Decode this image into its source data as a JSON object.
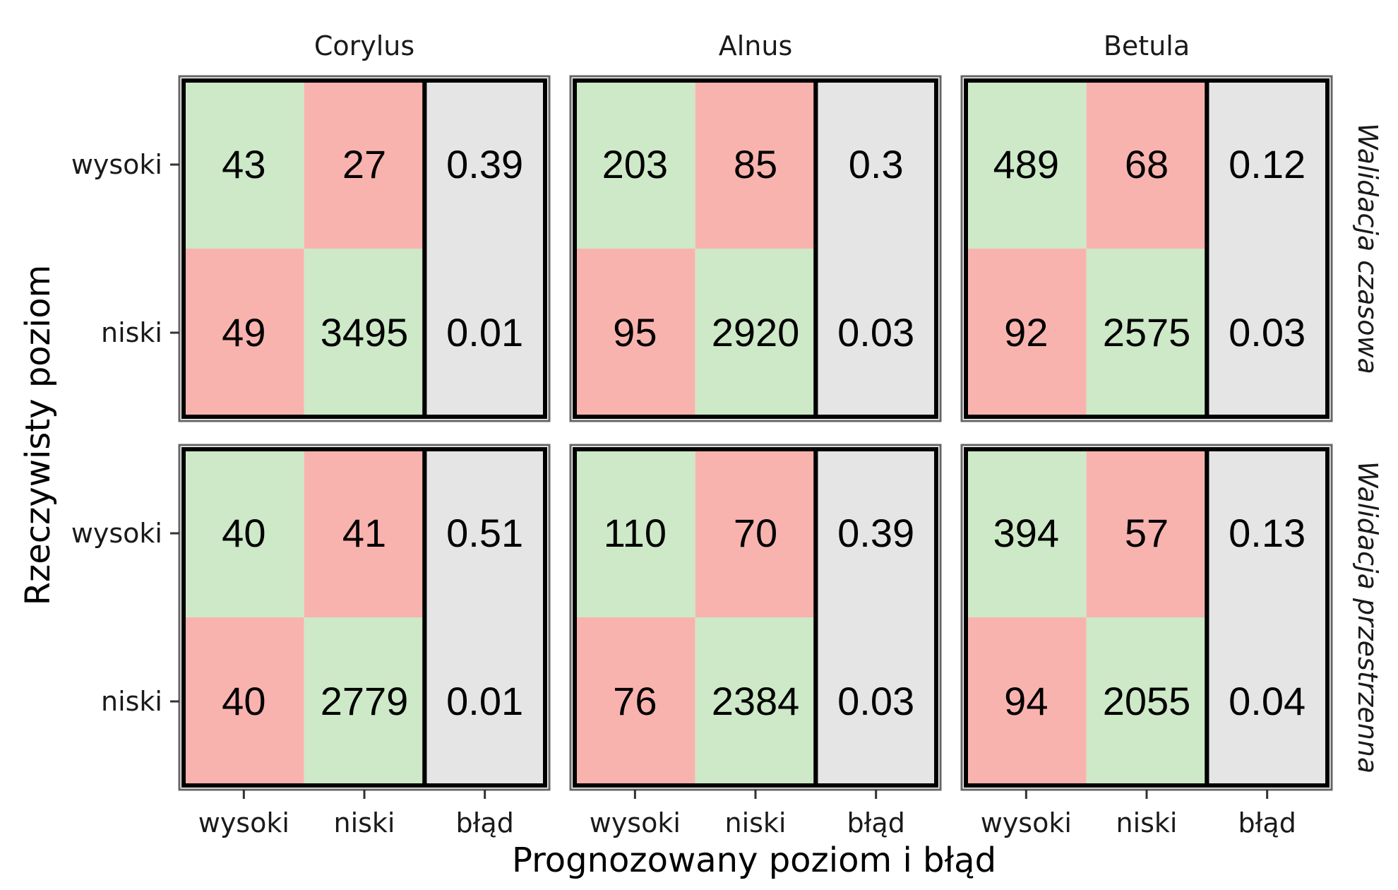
{
  "chart_data": {
    "type": "heatmap",
    "xlabel": "Prognozowany poziom i błąd",
    "ylabel": "Rzeczywisty poziom",
    "columns": [
      "wysoki",
      "niski",
      "błąd"
    ],
    "rows": [
      "wysoki",
      "niski"
    ],
    "facet_columns": [
      "Corylus",
      "Alnus",
      "Betula"
    ],
    "facet_rows": [
      "Walidacja czasowa",
      "Walidacja przestrzenna"
    ],
    "colors": {
      "correct": "#cde9c7",
      "wrong": "#f9b3ae",
      "error": "#e5e5e5",
      "border": "#000000",
      "panel_frame": "#666666"
    },
    "panels": [
      {
        "facet_row": "Walidacja czasowa",
        "facet_col": "Corylus",
        "values": [
          [
            "43",
            "27",
            "0.39"
          ],
          [
            "49",
            "3495",
            "0.01"
          ]
        ]
      },
      {
        "facet_row": "Walidacja czasowa",
        "facet_col": "Alnus",
        "values": [
          [
            "203",
            "85",
            "0.3"
          ],
          [
            "95",
            "2920",
            "0.03"
          ]
        ]
      },
      {
        "facet_row": "Walidacja czasowa",
        "facet_col": "Betula",
        "values": [
          [
            "489",
            "68",
            "0.12"
          ],
          [
            "92",
            "2575",
            "0.03"
          ]
        ]
      },
      {
        "facet_row": "Walidacja przestrzenna",
        "facet_col": "Corylus",
        "values": [
          [
            "40",
            "41",
            "0.51"
          ],
          [
            "40",
            "2779",
            "0.01"
          ]
        ]
      },
      {
        "facet_row": "Walidacja przestrzenna",
        "facet_col": "Alnus",
        "values": [
          [
            "110",
            "70",
            "0.39"
          ],
          [
            "76",
            "2384",
            "0.03"
          ]
        ]
      },
      {
        "facet_row": "Walidacja przestrzenna",
        "facet_col": "Betula",
        "values": [
          [
            "394",
            "57",
            "0.13"
          ],
          [
            "94",
            "2055",
            "0.04"
          ]
        ]
      }
    ]
  }
}
